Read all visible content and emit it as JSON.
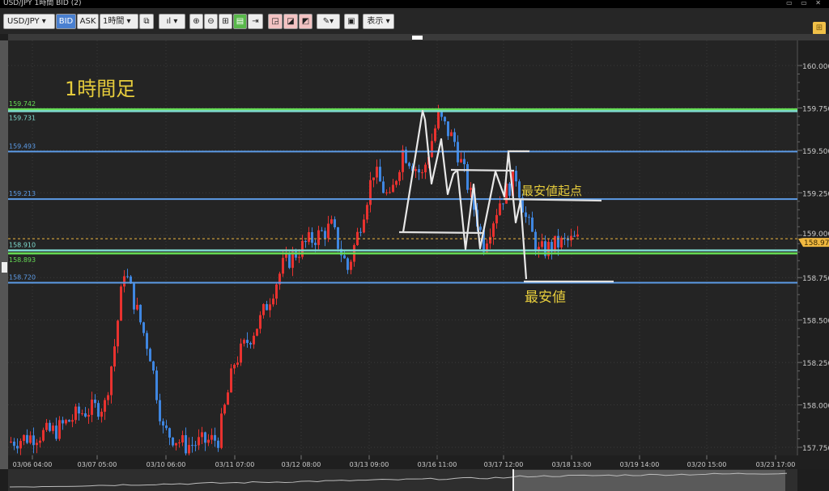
{
  "window": {
    "title": "USD/JPY 1時間 BID (2)",
    "controls": "▭ ▭ ✕"
  },
  "toolbar": {
    "symbol": "USD/JPY ▾",
    "bid": "BID",
    "ask": "ASK",
    "timeframe": "1時間 ▾",
    "chart_type": "▾",
    "view_menu": "表示 ▾",
    "icons": [
      "link-icon",
      "candlestick-icon",
      "zoom-in-icon",
      "zoom-out-icon",
      "grid-icon",
      "split-icon",
      "scroll-end-icon",
      "add-drawing-icon",
      "edit-drawing-icon",
      "delete-drawing-icon",
      "pen-icon",
      "screenshot-icon",
      "layout-icon"
    ]
  },
  "annotations": {
    "timeframe_label": "1時間足",
    "low_start_label": "最安値起点",
    "low_label": "最安値"
  },
  "colors": {
    "bull": "#e8322f",
    "bear": "#3f86e0",
    "blue_line": "#5c9be6",
    "green_line": "#66dd55",
    "cyan_line": "#7fdcd0",
    "current": "#f0b840",
    "annotation": "#e6cc3c"
  },
  "chart_data": {
    "type": "candlestick",
    "ylim": [
      157.75,
      160.0
    ],
    "y_ticks": [
      "160.000",
      "159.750",
      "159.500",
      "159.250",
      "159.000",
      "158.750",
      "158.500",
      "158.250",
      "158.000",
      "157.750"
    ],
    "x_ticks": [
      "03/06 04:00",
      "03/07 05:00",
      "03/10 06:00",
      "03/11 07:00",
      "03/12 08:00",
      "03/13 09:00",
      "03/16 11:00",
      "03/17 12:00",
      "03/18 13:00",
      "03/19 14:00",
      "03/20 15:00",
      "03/23 17:00"
    ],
    "current_price": "158.979",
    "levels": [
      {
        "label": "159.742",
        "value": 159.742,
        "color": "green"
      },
      {
        "label": "159.731",
        "value": 159.731,
        "color": "cyan"
      },
      {
        "label": "159.493",
        "value": 159.493,
        "color": "blue"
      },
      {
        "label": "159.213",
        "value": 159.213,
        "color": "blue"
      },
      {
        "label": "158.910",
        "value": 158.91,
        "color": "cyan"
      },
      {
        "label": "158.893",
        "value": 158.893,
        "color": "green"
      },
      {
        "label": "158.720",
        "value": 158.72,
        "color": "blue"
      }
    ],
    "price_path": [
      [
        0,
        157.78
      ],
      [
        15,
        157.85
      ],
      [
        22,
        157.95
      ],
      [
        30,
        158.0
      ],
      [
        33,
        158.35
      ],
      [
        36,
        158.8
      ],
      [
        40,
        158.55
      ],
      [
        44,
        158.3
      ],
      [
        48,
        157.85
      ],
      [
        55,
        157.76
      ],
      [
        65,
        157.8
      ],
      [
        70,
        158.25
      ],
      [
        78,
        158.5
      ],
      [
        85,
        158.82
      ],
      [
        92,
        158.95
      ],
      [
        100,
        159.05
      ],
      [
        105,
        158.8
      ],
      [
        108,
        159.0
      ],
      [
        113,
        159.38
      ],
      [
        118,
        159.2
      ],
      [
        122,
        159.5
      ],
      [
        128,
        159.35
      ],
      [
        133,
        159.7
      ],
      [
        138,
        159.55
      ],
      [
        142,
        159.3
      ],
      [
        147,
        158.95
      ],
      [
        152,
        159.2
      ],
      [
        157,
        159.35
      ],
      [
        160,
        159.1
      ],
      [
        164,
        158.9
      ],
      [
        170,
        158.95
      ],
      [
        175,
        158.97
      ]
    ]
  }
}
